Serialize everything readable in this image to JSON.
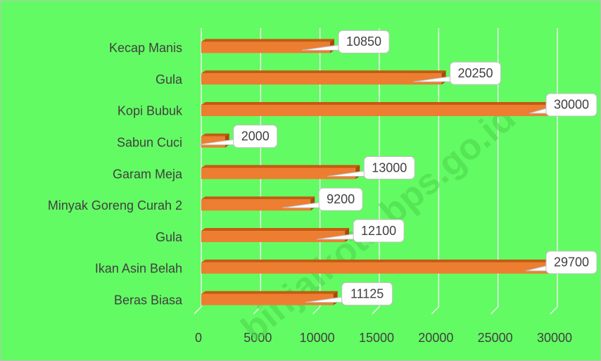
{
  "chart_data": {
    "type": "bar",
    "orientation": "horizontal",
    "categories": [
      "Kecap Manis",
      "Gula",
      "Kopi Bubuk",
      "Sabun Cuci",
      "Garam Meja",
      "Minyak Goreng Curah 2",
      "Gula",
      "Ikan Asin Belah",
      "Beras Biasa"
    ],
    "values": [
      10850,
      20250,
      30000,
      2000,
      13000,
      9200,
      12100,
      29700,
      11125
    ],
    "color": "#ed7d31",
    "xlim": [
      0,
      30000
    ],
    "xticks": [
      0,
      5000,
      10000,
      15000,
      20000,
      25000,
      30000
    ],
    "grid": true,
    "watermark": "binjaikota.bps.go.id"
  }
}
